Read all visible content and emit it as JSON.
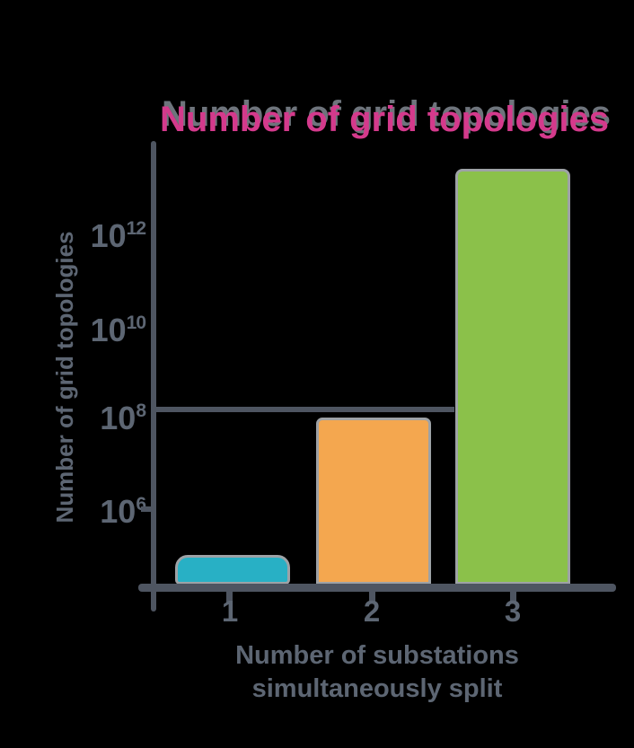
{
  "title": {
    "text": "Number of grid topologies",
    "color": "#d43a8c",
    "shadow_color": "#6e747c"
  },
  "y_axis": {
    "title": "Number of grid topologies",
    "scale": "log",
    "ticks": [
      {
        "base": "10",
        "exp": "12"
      },
      {
        "base": "10",
        "exp": "10"
      },
      {
        "base": "10",
        "exp": "8"
      },
      {
        "base": "10",
        "exp": "6"
      }
    ]
  },
  "x_axis": {
    "title_line1": "Number of substations",
    "title_line2": "simultaneously split",
    "ticks": [
      "1",
      "2",
      "3"
    ]
  },
  "colors": {
    "background": "#000000",
    "axis": "#4e5561",
    "label_gray": "#5d6673",
    "bar_outline": "#9ea2a6"
  },
  "chart_data": {
    "type": "bar",
    "title": "Number of grid topologies",
    "xlabel": "Number of substations simultaneously split",
    "ylabel": "Number of grid topologies",
    "categories": [
      "1",
      "2",
      "3"
    ],
    "values": [
      110000,
      130000000,
      45000000000000
    ],
    "values_log10_est": [
      5.05,
      8.1,
      13.65
    ],
    "y_scale": "log",
    "y_tick_labels": [
      "10^6",
      "10^8",
      "10^10",
      "10^12"
    ],
    "ylim_log10_est": [
      4.3,
      14.2
    ],
    "bar_colors": [
      "#28b0c5",
      "#f4a74f",
      "#8bc14a"
    ],
    "reference_line": {
      "level": "10^8",
      "note": "horizontal line from y-axis to left edge of third bar at the 10^8 level"
    },
    "grid": false,
    "legend": false
  }
}
